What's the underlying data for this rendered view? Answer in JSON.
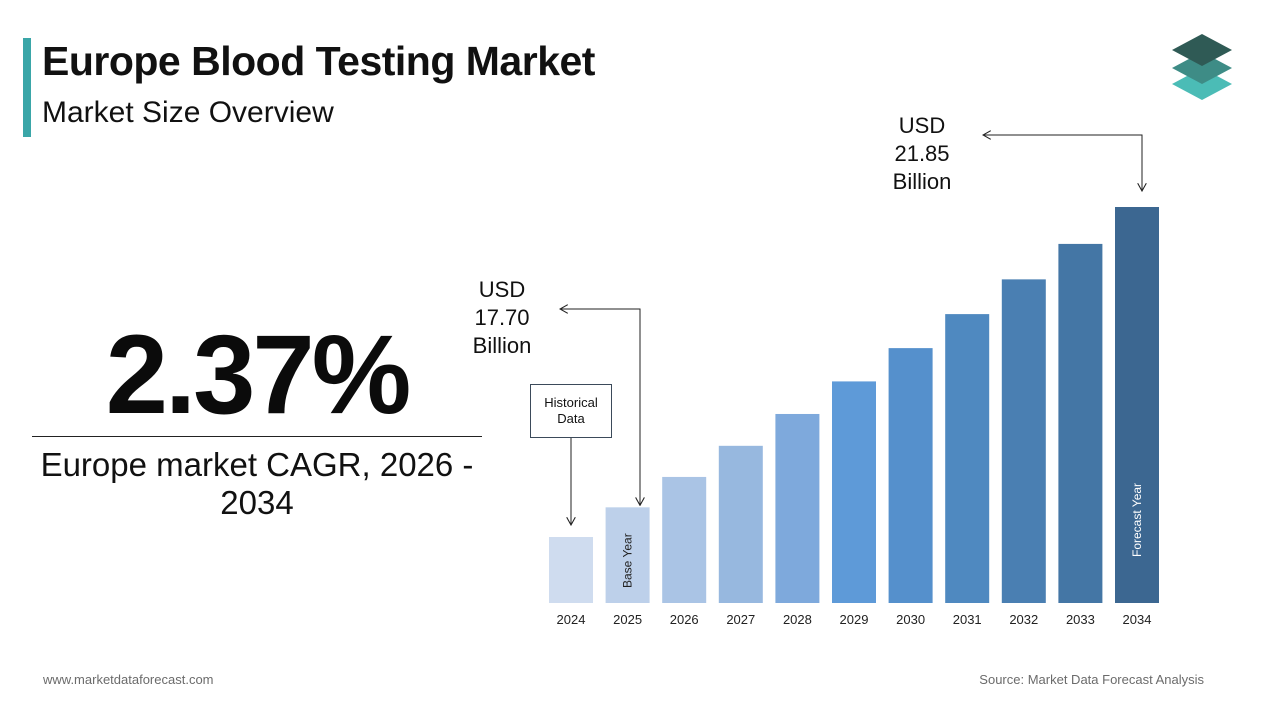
{
  "header": {
    "title": "Europe Blood Testing Market",
    "subtitle": "Market Size Overview"
  },
  "colors": {
    "accent": "#3aa6a8",
    "logo_top": "#2f5a55",
    "logo_mid": "#3e8c86",
    "logo_bottom": "#4bbcb6"
  },
  "cagr": {
    "value": "2.37%",
    "label": "Europe market CAGR, 2026 - 2034"
  },
  "annotations": {
    "start_value": "USD\n17.70\nBillion",
    "end_value": "USD\n21.85\nBillion",
    "historical": "Historical Data"
  },
  "chart_data": {
    "type": "bar",
    "categories": [
      "2024",
      "2025",
      "2026",
      "2027",
      "2028",
      "2029",
      "2030",
      "2031",
      "2032",
      "2033",
      "2034"
    ],
    "values": [
      17.29,
      17.7,
      18.12,
      18.55,
      18.99,
      19.44,
      19.9,
      20.37,
      20.85,
      21.34,
      21.85
    ],
    "bar_colors": [
      "#cfdcef",
      "#bdd0ea",
      "#aac4e5",
      "#97b8df",
      "#7ea9dc",
      "#5e9ad8",
      "#5590cc",
      "#4f89c0",
      "#4a7fb2",
      "#4476a5",
      "#3c6791"
    ],
    "bar_labels": {
      "2025": "Base Year",
      "2034": "Forecast Year"
    },
    "title": "",
    "xlabel": "",
    "ylabel": "",
    "grid": false,
    "legend": "none"
  },
  "footer": {
    "website": "www.marketdataforecast.com",
    "source": "Source: Market Data Forecast Analysis"
  }
}
